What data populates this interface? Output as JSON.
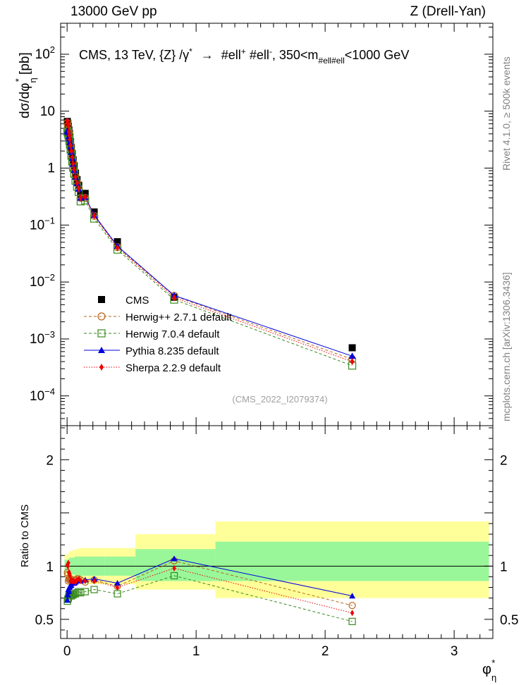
{
  "header": {
    "left": "13000 GeV pp",
    "right": "Z (Drell-Yan)"
  },
  "side_labels": {
    "rivet": "Rivet 4.1.0, ≥ 500k events",
    "mcplots": "mcplots.cern.ch [arXiv:1306.3436]"
  },
  "colors": {
    "cms": "#000000",
    "herwigpp": "#b8651b",
    "herwig7": "#3a8a1e",
    "pythia": "#0000dd",
    "sherpa": "#ee0000",
    "band_inner": "#99f799",
    "band_outer": "#ffff99"
  },
  "chart_data": [
    {
      "id": "main",
      "type": "scatter",
      "title": "CMS, 13 TeV, {Z} /γ* → #ell+ #ell-, 350<m#ell#ell<1000 GeV",
      "title_parts": {
        "prefix": "CMS, 13 TeV, {Z} /γ",
        "sup_star": "*",
        "arrow": "→",
        "l1": " #ell",
        "l1_sup": "+",
        "l2": " #ell",
        "l2_sup": "-",
        "m_pre": ", 350<m",
        "m_sub": "#ell#ell",
        "m_post": "<1000 GeV"
      },
      "ylabel": "dσ/dφ*η [pb]",
      "ylabel_parts": {
        "main": "dσ/dφ",
        "sup": "*",
        "sub": "η",
        "unit": " [pb]"
      },
      "yscale": "log",
      "ylim": [
        3e-05,
        350
      ],
      "xlim": [
        -0.05,
        3.3
      ],
      "yticks": [
        {
          "value": 0.0001,
          "base": "10",
          "exp": "−4"
        },
        {
          "value": 0.001,
          "base": "10",
          "exp": "−3"
        },
        {
          "value": 0.01,
          "base": "10",
          "exp": "−2"
        },
        {
          "value": 0.1,
          "base": "10",
          "exp": "−1"
        },
        {
          "value": 1,
          "base": "1",
          "exp": ""
        },
        {
          "value": 10,
          "base": "10",
          "exp": ""
        },
        {
          "value": 100,
          "base": "10",
          "exp": "2"
        }
      ],
      "x": [
        0.002,
        0.006,
        0.01,
        0.014,
        0.018,
        0.022,
        0.027,
        0.033,
        0.04,
        0.047,
        0.055,
        0.065,
        0.077,
        0.09,
        0.105,
        0.14,
        0.21,
        0.39,
        0.83,
        2.21
      ],
      "series": [
        {
          "name": "CMS",
          "key": "cms",
          "marker": "square-filled",
          "line": "none",
          "values": [
            6.6,
            6.0,
            5.4,
            4.7,
            4.1,
            3.5,
            2.9,
            2.3,
            1.8,
            1.4,
            1.1,
            0.82,
            0.63,
            0.5,
            0.35,
            0.36,
            0.17,
            0.051,
            0.0054,
            0.0007
          ]
        },
        {
          "name": "Herwig++ 2.7.1 default",
          "key": "herwigpp",
          "marker": "circle-open",
          "line": "dashed",
          "values": [
            6.2,
            5.5,
            4.6,
            4.1,
            3.6,
            3.05,
            2.55,
            2.0,
            1.55,
            1.22,
            0.93,
            0.71,
            0.56,
            0.44,
            0.3,
            0.3,
            0.145,
            0.041,
            0.0057,
            0.00044
          ]
        },
        {
          "name": "Herwig 7.0.4 default",
          "key": "herwig7",
          "marker": "square-open",
          "line": "dashed",
          "values": [
            4.4,
            4.1,
            3.8,
            3.4,
            3.0,
            2.6,
            2.1,
            1.65,
            1.3,
            1.02,
            0.8,
            0.6,
            0.47,
            0.38,
            0.26,
            0.27,
            0.13,
            0.037,
            0.0049,
            0.00034
          ]
        },
        {
          "name": "Pythia 8.235 default",
          "key": "pythia",
          "marker": "triangle-filled",
          "line": "solid",
          "values": [
            4.5,
            4.4,
            4.2,
            3.6,
            3.3,
            2.85,
            2.4,
            1.9,
            1.5,
            1.18,
            0.92,
            0.7,
            0.54,
            0.43,
            0.3,
            0.31,
            0.15,
            0.043,
            0.0058,
            0.0005
          ]
        },
        {
          "name": "Sherpa 2.2.9 default",
          "key": "sherpa",
          "marker": "diamond-filled",
          "line": "dotted",
          "values": [
            6.7,
            6.0,
            5.6,
            4.4,
            3.8,
            3.2,
            2.5,
            2.0,
            1.55,
            1.2,
            0.95,
            0.7,
            0.55,
            0.44,
            0.3,
            0.31,
            0.145,
            0.04,
            0.0053,
            0.0004
          ]
        }
      ],
      "legend_position": "left-middle",
      "watermark": "(CMS_2022_I2079374)"
    },
    {
      "id": "ratio",
      "type": "line",
      "ylabel": "Ratio to CMS",
      "ylim": [
        0.32,
        2.32
      ],
      "xlim": [
        -0.05,
        3.3
      ],
      "yticks": [
        {
          "value": 0.5,
          "label": "0.5"
        },
        {
          "value": 1,
          "label": "1"
        },
        {
          "value": 2,
          "label": "2"
        }
      ],
      "xticks": [
        {
          "value": 0,
          "label": "0"
        },
        {
          "value": 1,
          "label": "1"
        },
        {
          "value": 2,
          "label": "2"
        },
        {
          "value": 3,
          "label": "3"
        }
      ],
      "xlabel_parts": {
        "main": "φ",
        "sup": "*",
        "sub": "η"
      },
      "reference_line": 1,
      "bands": {
        "edges": [
          -0.02,
          0.01,
          0.02,
          0.04,
          0.06,
          0.09,
          0.15,
          0.29,
          0.53,
          1.15,
          3.27
        ],
        "outer_low": [
          0.89,
          0.87,
          0.86,
          0.85,
          0.84,
          0.84,
          0.83,
          0.83,
          0.78,
          0.7
        ],
        "outer_high": [
          1.11,
          1.13,
          1.14,
          1.15,
          1.16,
          1.17,
          1.17,
          1.17,
          1.3,
          1.42
        ],
        "inner_low": [
          0.94,
          0.93,
          0.92,
          0.92,
          0.91,
          0.91,
          0.91,
          0.91,
          0.86,
          0.86
        ],
        "inner_high": [
          1.06,
          1.07,
          1.08,
          1.08,
          1.09,
          1.09,
          1.09,
          1.09,
          1.16,
          1.23
        ]
      },
      "x": [
        0.002,
        0.006,
        0.01,
        0.014,
        0.018,
        0.022,
        0.027,
        0.033,
        0.04,
        0.047,
        0.055,
        0.065,
        0.077,
        0.09,
        0.105,
        0.14,
        0.21,
        0.39,
        0.83,
        2.21
      ],
      "series": [
        {
          "name": "Herwig++ 2.7.1 default",
          "key": "herwigpp",
          "marker": "circle-open",
          "line": "dashed",
          "values": [
            0.94,
            0.92,
            0.86,
            0.88,
            0.87,
            0.87,
            0.88,
            0.87,
            0.86,
            0.87,
            0.85,
            0.87,
            0.88,
            0.88,
            0.87,
            0.85,
            0.87,
            0.81,
            1.05,
            0.63
          ]
        },
        {
          "name": "Herwig 7.0.4 default",
          "key": "herwig7",
          "marker": "square-open",
          "line": "dashed",
          "values": [
            0.67,
            0.69,
            0.7,
            0.72,
            0.73,
            0.74,
            0.73,
            0.72,
            0.73,
            0.73,
            0.74,
            0.74,
            0.75,
            0.76,
            0.75,
            0.76,
            0.78,
            0.74,
            0.91,
            0.48
          ]
        },
        {
          "name": "Pythia 8.235 default",
          "key": "pythia",
          "marker": "triangle-filled",
          "line": "solid",
          "values": [
            0.68,
            0.73,
            0.78,
            0.76,
            0.8,
            0.81,
            0.82,
            0.82,
            0.84,
            0.84,
            0.84,
            0.85,
            0.86,
            0.86,
            0.86,
            0.87,
            0.88,
            0.84,
            1.07,
            0.72
          ]
        },
        {
          "name": "Sherpa 2.2.9 default",
          "key": "sherpa",
          "marker": "diamond-filled",
          "line": "dotted",
          "values": [
            1.01,
            1.0,
            1.03,
            0.94,
            0.93,
            0.91,
            0.86,
            0.87,
            0.86,
            0.86,
            0.86,
            0.85,
            0.87,
            0.88,
            0.86,
            0.86,
            0.86,
            0.8,
            0.98,
            0.56
          ]
        }
      ]
    }
  ]
}
